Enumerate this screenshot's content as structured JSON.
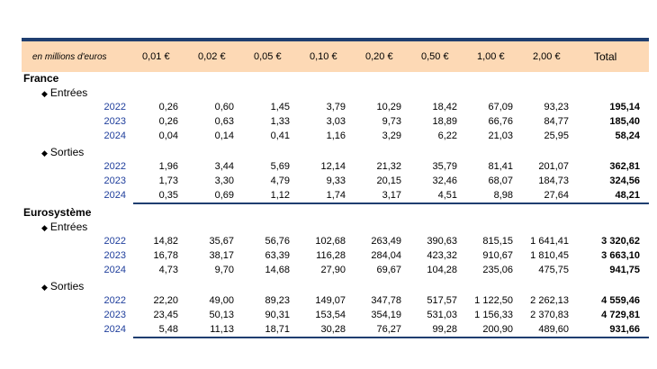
{
  "header": {
    "unit": "en millions d'euros",
    "columns": [
      "0,01 €",
      "0,02 €",
      "0,05 €",
      "0,10 €",
      "0,20 €",
      "0,50 €",
      "1,00 €",
      "2,00 €"
    ],
    "total": "Total"
  },
  "france": {
    "title": "France",
    "entrees": {
      "label": "Entrées",
      "rows": [
        {
          "year": "2022",
          "values": [
            "0,26",
            "0,60",
            "1,45",
            "3,79",
            "10,29",
            "18,42",
            "67,09",
            "93,23"
          ],
          "total": "195,14"
        },
        {
          "year": "2023",
          "values": [
            "0,26",
            "0,63",
            "1,33",
            "3,03",
            "9,73",
            "18,89",
            "66,76",
            "84,77"
          ],
          "total": "185,40"
        },
        {
          "year": "2024",
          "values": [
            "0,04",
            "0,14",
            "0,41",
            "1,16",
            "3,29",
            "6,22",
            "21,03",
            "25,95"
          ],
          "total": "58,24"
        }
      ]
    },
    "sorties": {
      "label": "Sorties",
      "rows": [
        {
          "year": "2022",
          "values": [
            "1,96",
            "3,44",
            "5,69",
            "12,14",
            "21,32",
            "35,79",
            "81,41",
            "201,07"
          ],
          "total": "362,81"
        },
        {
          "year": "2023",
          "values": [
            "1,73",
            "3,30",
            "4,79",
            "9,33",
            "20,15",
            "32,46",
            "68,07",
            "184,73"
          ],
          "total": "324,56"
        },
        {
          "year": "2024",
          "values": [
            "0,35",
            "0,69",
            "1,12",
            "1,74",
            "3,17",
            "4,51",
            "8,98",
            "27,64"
          ],
          "total": "48,21"
        }
      ]
    }
  },
  "eurosysteme": {
    "title": "Eurosystème",
    "entrees": {
      "label": "Entrées",
      "rows": [
        {
          "year": "2022",
          "values": [
            "14,82",
            "35,67",
            "56,76",
            "102,68",
            "263,49",
            "390,63",
            "815,15",
            "1 641,41"
          ],
          "total": "3 320,62"
        },
        {
          "year": "2023",
          "values": [
            "16,78",
            "38,17",
            "63,39",
            "116,28",
            "284,04",
            "423,32",
            "910,67",
            "1 810,45"
          ],
          "total": "3 663,10"
        },
        {
          "year": "2024",
          "values": [
            "4,73",
            "9,70",
            "14,68",
            "27,90",
            "69,67",
            "104,28",
            "235,06",
            "475,75"
          ],
          "total": "941,75"
        }
      ]
    },
    "sorties": {
      "label": "Sorties",
      "rows": [
        {
          "year": "2022",
          "values": [
            "22,20",
            "49,00",
            "89,23",
            "149,07",
            "347,78",
            "517,57",
            "1 122,50",
            "2 262,13"
          ],
          "total": "4 559,46"
        },
        {
          "year": "2023",
          "values": [
            "23,45",
            "50,13",
            "90,31",
            "153,54",
            "354,19",
            "531,03",
            "1 156,33",
            "2 370,83"
          ],
          "total": "4 729,81"
        },
        {
          "year": "2024",
          "values": [
            "5,48",
            "11,13",
            "18,71",
            "30,28",
            "76,27",
            "99,28",
            "200,90",
            "489,60"
          ],
          "total": "931,66"
        }
      ]
    }
  }
}
